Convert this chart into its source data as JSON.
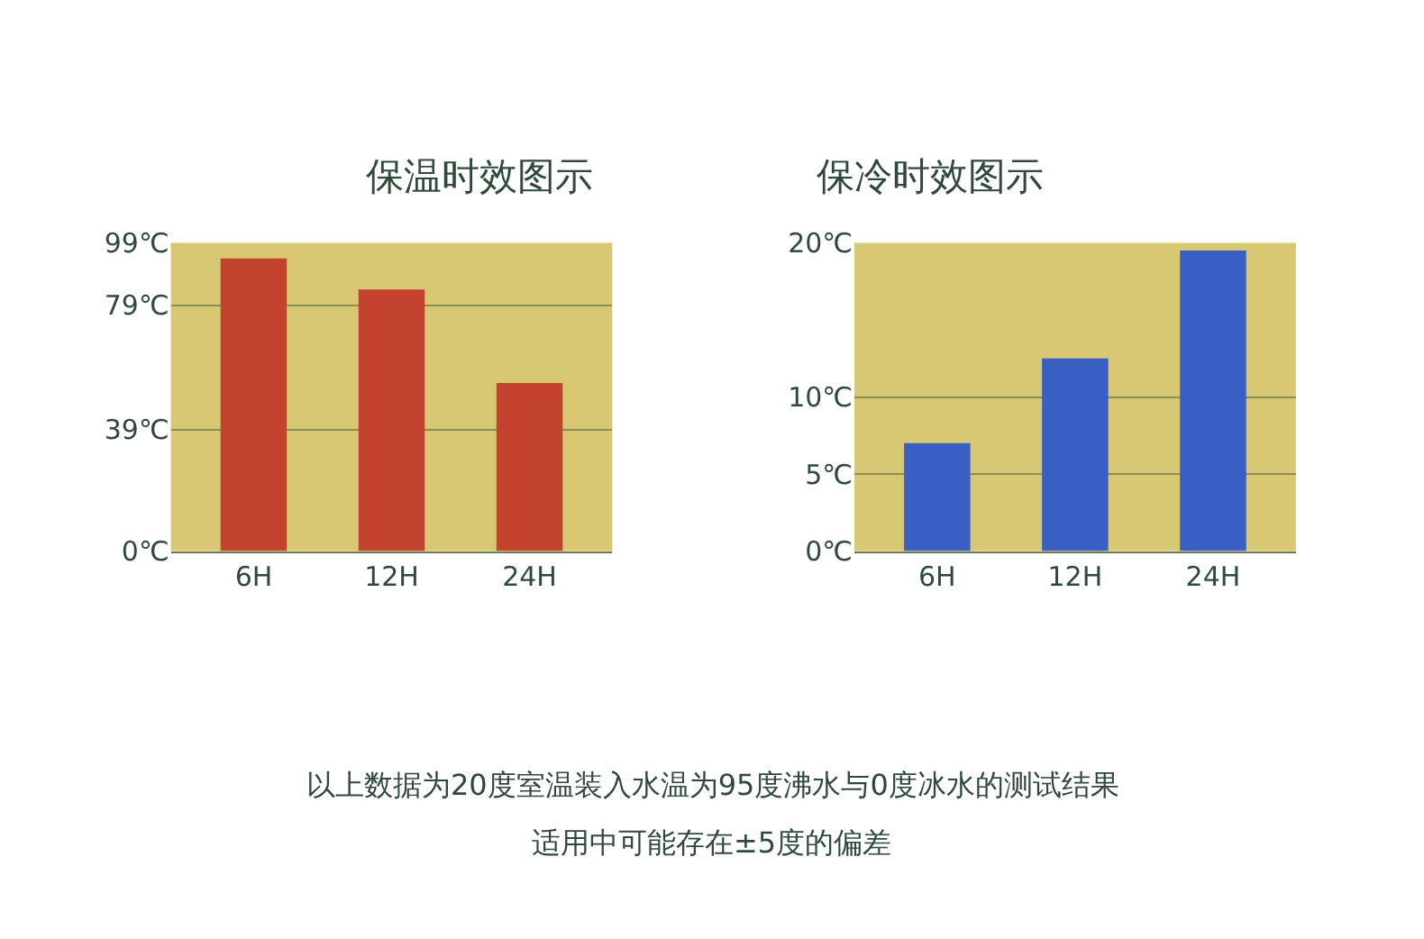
{
  "chart_data": [
    {
      "type": "bar",
      "title": "保温时效图示",
      "categories": [
        "6H",
        "12H",
        "24H"
      ],
      "values": [
        94,
        84,
        54
      ],
      "color": "#c4432e",
      "ylim": [
        0,
        99
      ],
      "yticks": [
        {
          "value": 0,
          "label": "0℃"
        },
        {
          "value": 39,
          "label": "39℃"
        },
        {
          "value": 79,
          "label": "79℃"
        },
        {
          "value": 99,
          "label": "99℃"
        }
      ],
      "grid": "y",
      "annotations": [
        "以上数据为20度室温装入水温为95度沸水与0度冰水的测试结果",
        "适用中可能存在±5度的偏差"
      ]
    },
    {
      "type": "bar",
      "title": "保冷时效图示",
      "categories": [
        "6H",
        "12H",
        "24H"
      ],
      "values": [
        7,
        12.5,
        19.5
      ],
      "color": "#3a5fc4",
      "ylim": [
        0,
        20
      ],
      "yticks": [
        {
          "value": 0,
          "label": "0℃"
        },
        {
          "value": 5,
          "label": "5℃"
        },
        {
          "value": 10,
          "label": "10℃"
        },
        {
          "value": 20,
          "label": "20℃"
        }
      ],
      "grid": "y"
    }
  ]
}
